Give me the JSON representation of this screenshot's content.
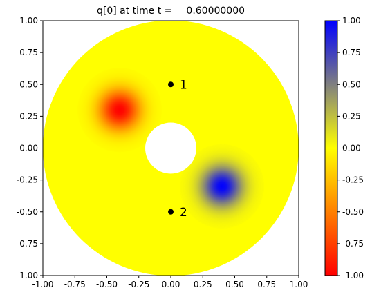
{
  "chart_data": {
    "type": "heatmap",
    "title_prefix": "q[0] at time t =",
    "title_time": "0.60000000",
    "xlim": [
      -1.0,
      1.0
    ],
    "ylim": [
      -1.0,
      1.0
    ],
    "xticks": [
      "-1.00",
      "-0.75",
      "-0.50",
      "-0.25",
      "0.00",
      "0.25",
      "0.50",
      "0.75",
      "1.00"
    ],
    "yticks": [
      "-1.00",
      "-0.75",
      "-0.50",
      "-0.25",
      "0.00",
      "0.25",
      "0.50",
      "0.75",
      "1.00"
    ],
    "domain": {
      "shape": "annulus",
      "outer_radius": 1.0,
      "inner_radius": 0.2
    },
    "field": {
      "background_value": 0.0,
      "blobs": [
        {
          "x": -0.4,
          "y": 0.3,
          "value": -1.0,
          "sigma": 0.11
        },
        {
          "x": 0.4,
          "y": -0.3,
          "value": 1.0,
          "sigma": 0.11
        }
      ]
    },
    "points": [
      {
        "x": 0.0,
        "y": 0.5,
        "label": "1"
      },
      {
        "x": 0.0,
        "y": -0.5,
        "label": "2"
      }
    ],
    "colorbar": {
      "range": [
        -1.0,
        1.0
      ],
      "ticks": [
        "-1.00",
        "-0.75",
        "-0.50",
        "-0.25",
        "0.00",
        "0.25",
        "0.50",
        "0.75",
        "1.00"
      ],
      "colors": {
        "min": "#ff0000",
        "mid": "#ffff00",
        "max": "#0000ff"
      }
    }
  }
}
